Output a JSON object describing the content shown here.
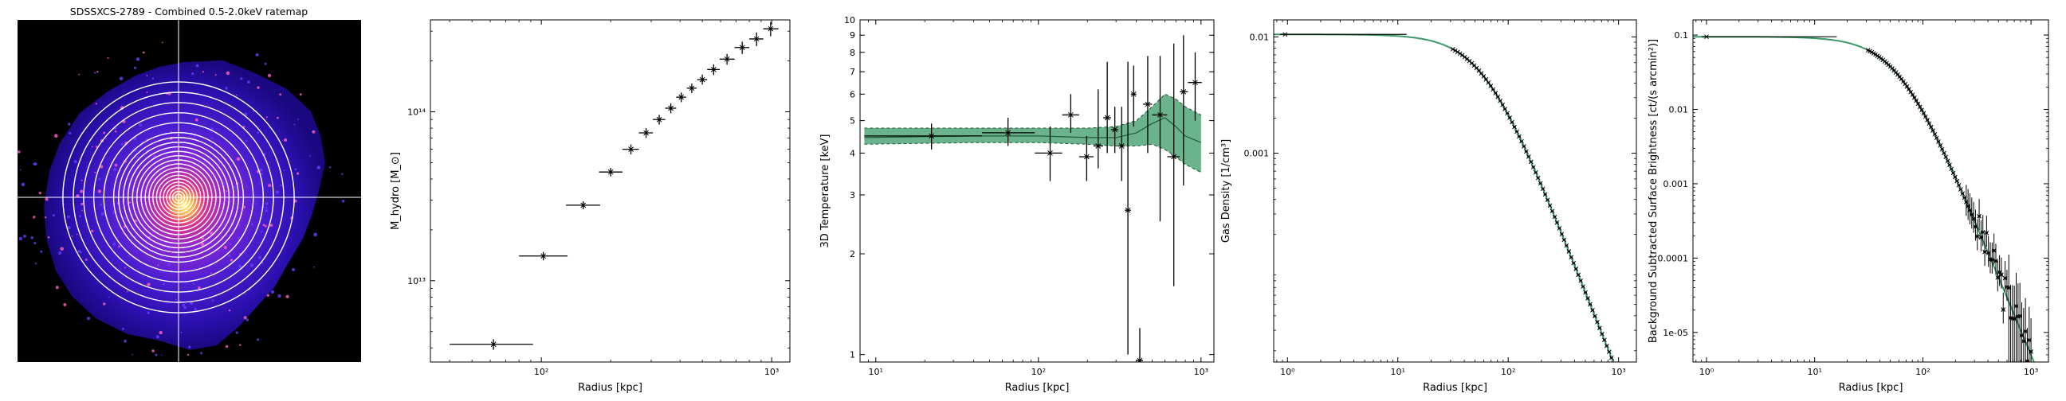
{
  "chart_data": [
    {
      "type": "image",
      "title": "SDSSXCS-2789 - Combined 0.5-2.0keV ratemap",
      "annuli_count": 22,
      "crosshair": true,
      "colormap": "gnuplot2",
      "background": "#000000",
      "annulus_color": "#ffffff"
    },
    {
      "type": "scatter",
      "title": "",
      "xlabel": "Radius [kpc]",
      "ylabel": "M_hydro [M_⊙]",
      "xscale": "log",
      "yscale": "log",
      "xlim": [
        33,
        1200
      ],
      "ylim": [
        3300000000000.0,
        350000000000000.0
      ],
      "xticks": [
        {
          "v": 100,
          "label": "10²"
        },
        {
          "v": 1000,
          "label": "10³"
        }
      ],
      "yticks": [
        {
          "v": 10000000000000.0,
          "label": "10¹³"
        },
        {
          "v": 100000000000000.0,
          "label": "10¹⁴"
        }
      ],
      "series": [
        {
          "x": 62,
          "y": 4200000000000.0,
          "xlo": 40,
          "xhi": 92,
          "ylo": 3900000000000.0,
          "yhi": 4500000000000.0
        },
        {
          "x": 102,
          "y": 14000000000000.0,
          "xlo": 80,
          "xhi": 130,
          "ylo": 13200000000000.0,
          "yhi": 14800000000000.0
        },
        {
          "x": 152,
          "y": 28000000000000.0,
          "xlo": 128,
          "xhi": 180,
          "ylo": 26500000000000.0,
          "yhi": 29500000000000.0
        },
        {
          "x": 200,
          "y": 44000000000000.0,
          "xlo": 178,
          "xhi": 225,
          "ylo": 41500000000000.0,
          "yhi": 46500000000000.0
        },
        {
          "x": 245,
          "y": 60000000000000.0,
          "xlo": 225,
          "xhi": 265,
          "ylo": 56000000000000.0,
          "yhi": 64000000000000.0
        },
        {
          "x": 285,
          "y": 75000000000000.0,
          "xlo": 265,
          "xhi": 305,
          "ylo": 70000000000000.0,
          "yhi": 80000000000000.0
        },
        {
          "x": 325,
          "y": 90000000000000.0,
          "xlo": 305,
          "xhi": 345,
          "ylo": 84000000000000.0,
          "yhi": 96000000000000.0
        },
        {
          "x": 365,
          "y": 105000000000000.0,
          "xlo": 345,
          "xhi": 385,
          "ylo": 98000000000000.0,
          "yhi": 112000000000000.0
        },
        {
          "x": 405,
          "y": 122000000000000.0,
          "xlo": 385,
          "xhi": 425,
          "ylo": 114000000000000.0,
          "yhi": 130000000000000.0
        },
        {
          "x": 450,
          "y": 138000000000000.0,
          "xlo": 428,
          "xhi": 472,
          "ylo": 129000000000000.0,
          "yhi": 147000000000000.0
        },
        {
          "x": 500,
          "y": 155000000000000.0,
          "xlo": 475,
          "xhi": 525,
          "ylo": 145000000000000.0,
          "yhi": 166000000000000.0
        },
        {
          "x": 560,
          "y": 178000000000000.0,
          "xlo": 525,
          "xhi": 595,
          "ylo": 165000000000000.0,
          "yhi": 191000000000000.0
        },
        {
          "x": 640,
          "y": 205000000000000.0,
          "xlo": 595,
          "xhi": 690,
          "ylo": 190000000000000.0,
          "yhi": 220000000000000.0
        },
        {
          "x": 745,
          "y": 240000000000000.0,
          "xlo": 690,
          "xhi": 800,
          "ylo": 220000000000000.0,
          "yhi": 260000000000000.0
        },
        {
          "x": 860,
          "y": 270000000000000.0,
          "xlo": 800,
          "xhi": 920,
          "ylo": 245000000000000.0,
          "yhi": 295000000000000.0
        },
        {
          "x": 990,
          "y": 310000000000000.0,
          "xlo": 920,
          "xhi": 1070,
          "ylo": 280000000000000.0,
          "yhi": 340000000000000.0
        }
      ]
    },
    {
      "type": "scatter",
      "title": "",
      "xlabel": "Radius [kpc]",
      "ylabel": "3D Temperature [keV]",
      "xscale": "log",
      "yscale": "log",
      "xlim": [
        8,
        1200
      ],
      "ylim": [
        0.95,
        10
      ],
      "xticks": [
        {
          "v": 10,
          "label": "10¹"
        },
        {
          "v": 100,
          "label": "10²"
        },
        {
          "v": 1000,
          "label": "10³"
        }
      ],
      "yticks": [
        {
          "v": 1,
          "label": "1"
        },
        {
          "v": 2,
          "label": "2"
        },
        {
          "v": 3,
          "label": "3"
        },
        {
          "v": 4,
          "label": "4"
        },
        {
          "v": 5,
          "label": "5"
        },
        {
          "v": 6,
          "label": "6"
        },
        {
          "v": 7,
          "label": "7"
        },
        {
          "v": 8,
          "label": "8"
        },
        {
          "v": 9,
          "label": "9"
        },
        {
          "v": 10,
          "label": "10"
        }
      ],
      "model_band": {
        "x": [
          8.5,
          40,
          100,
          200,
          300,
          400,
          500,
          600,
          700,
          800,
          1000
        ],
        "mid": [
          4.45,
          4.5,
          4.5,
          4.45,
          4.45,
          4.6,
          4.9,
          5.1,
          4.8,
          4.5,
          4.3
        ],
        "lo": [
          4.25,
          4.3,
          4.3,
          4.25,
          4.2,
          4.2,
          4.25,
          4.1,
          3.9,
          3.7,
          3.5
        ],
        "hi": [
          4.75,
          4.75,
          4.75,
          4.75,
          4.8,
          5.0,
          5.5,
          6.0,
          5.8,
          5.5,
          5.2
        ]
      },
      "series": [
        {
          "x": 22,
          "y": 4.5,
          "xlo": 8.5,
          "xhi": 45,
          "ylo": 4.1,
          "yhi": 4.9
        },
        {
          "x": 65,
          "y": 4.6,
          "xlo": 45,
          "xhi": 95,
          "ylo": 4.2,
          "yhi": 5.1
        },
        {
          "x": 118,
          "y": 4.0,
          "xlo": 95,
          "xhi": 140,
          "ylo": 3.3,
          "yhi": 4.8
        },
        {
          "x": 158,
          "y": 5.2,
          "xlo": 140,
          "xhi": 178,
          "ylo": 4.6,
          "yhi": 6.0
        },
        {
          "x": 198,
          "y": 3.9,
          "xlo": 178,
          "xhi": 218,
          "ylo": 3.3,
          "yhi": 4.5
        },
        {
          "x": 233,
          "y": 4.2,
          "xlo": 218,
          "xhi": 250,
          "ylo": 3.6,
          "yhi": 6.2
        },
        {
          "x": 265,
          "y": 5.1,
          "xlo": 250,
          "xhi": 280,
          "ylo": 4.0,
          "yhi": 7.5
        },
        {
          "x": 295,
          "y": 4.7,
          "xlo": 280,
          "xhi": 310,
          "ylo": 4.0,
          "yhi": 5.5
        },
        {
          "x": 325,
          "y": 4.2,
          "xlo": 310,
          "xhi": 340,
          "ylo": 3.3,
          "yhi": 5.5
        },
        {
          "x": 355,
          "y": 2.7,
          "xlo": 340,
          "xhi": 370,
          "ylo": 1.0,
          "yhi": 7.5
        },
        {
          "x": 385,
          "y": 6.0,
          "xlo": 370,
          "xhi": 400,
          "ylo": 4.8,
          "yhi": 7.3
        },
        {
          "x": 420,
          "y": 0.96,
          "xlo": 400,
          "xhi": 440,
          "ylo": 0.95,
          "yhi": 1.2
        },
        {
          "x": 470,
          "y": 5.6,
          "xlo": 440,
          "xhi": 500,
          "ylo": 4.0,
          "yhi": 7.8
        },
        {
          "x": 560,
          "y": 5.2,
          "xlo": 500,
          "xhi": 620,
          "ylo": 2.5,
          "yhi": 7.8
        },
        {
          "x": 680,
          "y": 3.9,
          "xlo": 620,
          "xhi": 740,
          "ylo": 1.6,
          "yhi": 8.5
        },
        {
          "x": 780,
          "y": 6.1,
          "xlo": 740,
          "xhi": 830,
          "ylo": 3.2,
          "yhi": 9.0
        },
        {
          "x": 920,
          "y": 6.5,
          "xlo": 830,
          "xhi": 1010,
          "ylo": 5.0,
          "yhi": 8.0
        }
      ]
    },
    {
      "type": "line",
      "title": "",
      "xlabel": "Radius [kpc]",
      "ylabel": "Gas Density [1/cm³]",
      "xscale": "log",
      "yscale": "log",
      "xlim": [
        0.75,
        1450
      ],
      "ylim": [
        1.6e-05,
        0.014
      ],
      "xticks": [
        {
          "v": 1,
          "label": "10⁰"
        },
        {
          "v": 10,
          "label": "10¹"
        },
        {
          "v": 100,
          "label": "10²"
        },
        {
          "v": 1000,
          "label": "10³"
        }
      ],
      "yticks": [
        {
          "v": 0.001,
          "label": "0.001"
        },
        {
          "v": 0.01,
          "label": "0.01"
        }
      ],
      "model": {
        "n0": 0.0105,
        "rc": 60,
        "beta": 0.8
      },
      "data_points": {
        "r_min": 0.95,
        "r_max": 1000,
        "count": 72,
        "first_bin_xhi": 12
      }
    },
    {
      "type": "line",
      "title": "",
      "xlabel": "Radius [kpc]",
      "ylabel": "Background Subtracted Surface Brightness [ct/(s arcmin²)]",
      "xscale": "log",
      "yscale": "log",
      "xlim": [
        0.75,
        1450
      ],
      "ylim": [
        4e-06,
        0.16
      ],
      "xticks": [
        {
          "v": 1,
          "label": "10⁰"
        },
        {
          "v": 10,
          "label": "10¹"
        },
        {
          "v": 100,
          "label": "10²"
        },
        {
          "v": 1000,
          "label": "10³"
        }
      ],
      "yticks": [
        {
          "v": 1e-05,
          "label": "1e-05"
        },
        {
          "v": 0.0001,
          "label": "0.0001"
        },
        {
          "v": 0.001,
          "label": "0.001"
        },
        {
          "v": 0.01,
          "label": "0.01"
        },
        {
          "v": 0.1,
          "label": "0.1"
        }
      ],
      "model": {
        "s0": 0.095,
        "rc": 60,
        "beta": 0.75
      },
      "data_points": {
        "r_min": 1.0,
        "r_max": 1000,
        "count": 90,
        "first_bin_xhi": 16
      }
    }
  ]
}
